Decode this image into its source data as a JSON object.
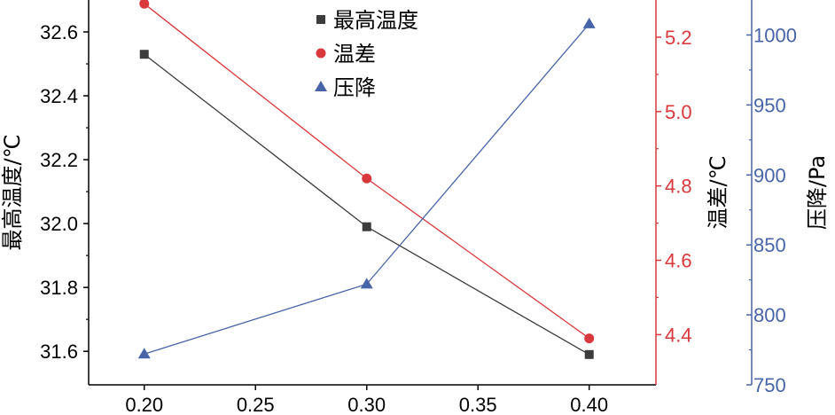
{
  "chart_data": {
    "type": "line",
    "x": [
      0.2,
      0.3,
      0.4
    ],
    "x_tick_labels": [
      "0.20",
      "0.25",
      "0.30",
      "0.35",
      "0.40"
    ],
    "x_ticks": [
      0.2,
      0.25,
      0.3,
      0.35,
      0.4
    ],
    "xlim": [
      0.175,
      0.43
    ],
    "series": [
      {
        "name": "最高温度",
        "axis": "left",
        "marker": "square",
        "color": "#3c3c3c",
        "values": [
          32.53,
          31.99,
          31.59
        ]
      },
      {
        "name": "温差",
        "axis": "right1",
        "marker": "circle",
        "color": "#d9383c",
        "values": [
          5.29,
          4.82,
          4.39
        ]
      },
      {
        "name": "压降",
        "axis": "right2",
        "marker": "triangle",
        "color": "#4864a8",
        "values": [
          772,
          822,
          1008
        ]
      }
    ],
    "axes": {
      "left": {
        "label": "最高温度/℃",
        "color": "#000000",
        "ylim": [
          31.495,
          32.7
        ],
        "ticks": [
          31.6,
          31.8,
          32.0,
          32.2,
          32.4,
          32.6
        ],
        "tick_labels": [
          "31.6",
          "31.8",
          "32.0",
          "32.2",
          "32.4",
          "32.6"
        ]
      },
      "right1": {
        "label": "温差/℃",
        "color": "#d9383c",
        "ylim": [
          4.265,
          5.3
        ],
        "ticks": [
          4.4,
          4.6,
          4.8,
          5.0,
          5.2
        ],
        "tick_labels": [
          "4.4",
          "4.6",
          "4.8",
          "5.0",
          "5.2"
        ]
      },
      "right2": {
        "label": "压降/Pa",
        "color": "#4864a8",
        "ylim": [
          750,
          1025
        ],
        "ticks": [
          750,
          800,
          850,
          900,
          950,
          1000
        ],
        "tick_labels": [
          "750",
          "800",
          "850",
          "900",
          "950",
          "1000"
        ]
      }
    },
    "legend": {
      "placement": "top-center",
      "entries": [
        "最高温度",
        "温差",
        "压降"
      ]
    },
    "grid": false
  }
}
